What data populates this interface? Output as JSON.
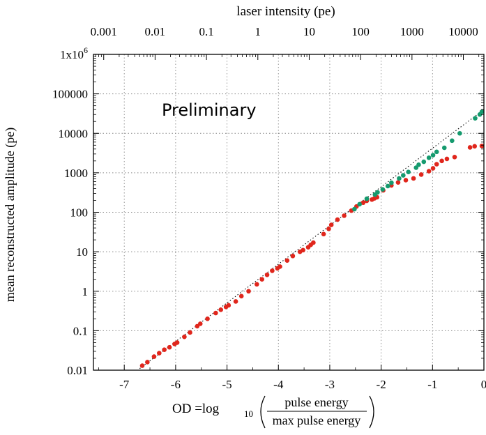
{
  "chart_data": {
    "type": "scatter",
    "title": "",
    "annotation": "Preliminary",
    "xlabel": {
      "prefix": "OD =log",
      "subscript": "10",
      "numerator": "pulse energy",
      "denominator": "max pulse energy"
    },
    "ylabel": "mean reconstructed amplitude (pe)",
    "x2label": "laser intensity (pe)",
    "xlim": [
      -7.6,
      0
    ],
    "ylim_log10": [
      -2,
      6
    ],
    "x2lim_log10": [
      -3.2,
      4.4
    ],
    "y_scale": "log",
    "x2_scale": "log",
    "grid": true,
    "x_ticks": [
      -7,
      -6,
      -5,
      -4,
      -3,
      -2,
      -1,
      0
    ],
    "x_tick_labels": [
      "-7",
      "-6",
      "-5",
      "-4",
      "-3",
      "-2",
      "-1",
      "0"
    ],
    "y_ticks": [
      {
        "value": 0.01,
        "label": "0.01"
      },
      {
        "value": 0.1,
        "label": "0.1"
      },
      {
        "value": 1,
        "label": "1"
      },
      {
        "value": 10,
        "label": "10"
      },
      {
        "value": 100,
        "label": "100"
      },
      {
        "value": 1000,
        "label": "1000"
      },
      {
        "value": 10000,
        "label": "10000"
      },
      {
        "value": 100000,
        "label": "100000"
      },
      {
        "value": 1000000,
        "label": "1x10",
        "sup": "6"
      }
    ],
    "x2_ticks": [
      {
        "value": 0.001,
        "label": "0.001"
      },
      {
        "value": 0.01,
        "label": "0.01"
      },
      {
        "value": 0.1,
        "label": "0.1"
      },
      {
        "value": 1,
        "label": "1"
      },
      {
        "value": 10,
        "label": "10"
      },
      {
        "value": 100,
        "label": "100"
      },
      {
        "value": 1000,
        "label": "1000"
      },
      {
        "value": 10000,
        "label": "10000"
      }
    ],
    "reference_line": {
      "style": "dotted",
      "x": [
        -6.7,
        0
      ],
      "y": [
        0.011,
        40000
      ]
    },
    "colors": {
      "red": "#e0261c",
      "green": "#159a6e",
      "grid": "#888888",
      "axis": "#000000"
    },
    "series": [
      {
        "color": "#e0261c",
        "x": [
          -6.65,
          -6.55,
          -6.42,
          -6.32,
          -6.22,
          -6.12,
          -6.02,
          -5.97,
          -5.83,
          -5.72,
          -5.58,
          -5.52,
          -5.38,
          -5.22,
          -5.12,
          -5.02,
          -4.97,
          -4.83,
          -4.72,
          -4.58,
          -4.42,
          -4.32,
          -4.22,
          -4.12,
          -4.02,
          -3.97,
          -3.83,
          -3.72,
          -3.58,
          -3.52,
          -3.42,
          -3.37,
          -3.32,
          -3.12,
          -3.02,
          -2.97,
          -2.85,
          -2.72,
          -2.58,
          -2.48,
          -2.35,
          -2.28,
          -2.18,
          -2.13,
          -2.08,
          -1.96,
          -1.8,
          -1.67,
          -1.52,
          -1.37,
          -1.22,
          -1.07,
          -0.99,
          -0.92,
          -0.82,
          -0.72,
          -0.57,
          -0.27,
          -0.18,
          0.0
        ],
        "y": [
          0.013,
          0.016,
          0.022,
          0.027,
          0.033,
          0.038,
          0.046,
          0.05,
          0.07,
          0.09,
          0.13,
          0.15,
          0.2,
          0.28,
          0.34,
          0.4,
          0.44,
          0.55,
          0.75,
          1.0,
          1.5,
          2.0,
          2.6,
          3.3,
          3.8,
          4.2,
          6.0,
          7.8,
          10,
          11,
          13,
          15,
          17,
          28,
          38,
          48,
          65,
          82,
          110,
          140,
          175,
          195,
          210,
          225,
          240,
          360,
          480,
          570,
          650,
          720,
          900,
          1100,
          1300,
          1650,
          2000,
          2250,
          2500,
          4400,
          4700,
          4800
        ]
      },
      {
        "color": "#159a6e",
        "x": [
          -2.52,
          -2.42,
          -2.28,
          -2.12,
          -2.07,
          -1.97,
          -1.87,
          -1.8,
          -1.65,
          -1.57,
          -1.47,
          -1.32,
          -1.27,
          -1.17,
          -1.07,
          -0.99,
          -0.92,
          -0.77,
          -0.62,
          -0.47,
          -0.17,
          -0.08,
          0.0
        ],
        "y": [
          120,
          160,
          220,
          280,
          320,
          380,
          460,
          560,
          720,
          860,
          1050,
          1350,
          1600,
          1900,
          2400,
          2800,
          3400,
          4300,
          6500,
          10000,
          24000,
          30000,
          35000
        ]
      }
    ]
  }
}
